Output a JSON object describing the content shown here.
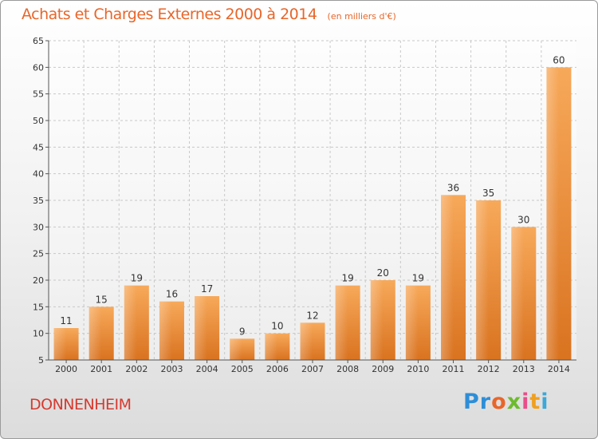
{
  "header": {
    "title": "Achats et Charges Externes 2000 à 2014",
    "unit": "(en milliers d'€)"
  },
  "footer": {
    "city": "DONNENHEIM",
    "logo_letters": [
      "P",
      "r",
      "o",
      "x",
      "i",
      "t",
      "i"
    ]
  },
  "colors": {
    "title": "#e8662a",
    "bar_light": "#f7a95a",
    "bar_dark": "#d97320",
    "city": "#d63a2f"
  },
  "chart_data": {
    "type": "bar",
    "title": "Achats et Charges Externes 2000 à 2014",
    "subtitle": "(en milliers d'€)",
    "xlabel": "",
    "ylabel": "",
    "categories": [
      "2000",
      "2001",
      "2002",
      "2003",
      "2004",
      "2005",
      "2006",
      "2007",
      "2008",
      "2009",
      "2010",
      "2011",
      "2012",
      "2013",
      "2014"
    ],
    "values": [
      11,
      15,
      19,
      16,
      17,
      9,
      10,
      12,
      19,
      20,
      19,
      36,
      35,
      30,
      60
    ],
    "ylim": [
      5,
      65
    ],
    "yticks": [
      5,
      10,
      15,
      20,
      25,
      30,
      35,
      40,
      45,
      50,
      55,
      60,
      65
    ],
    "grid": true,
    "data_labels": true
  }
}
